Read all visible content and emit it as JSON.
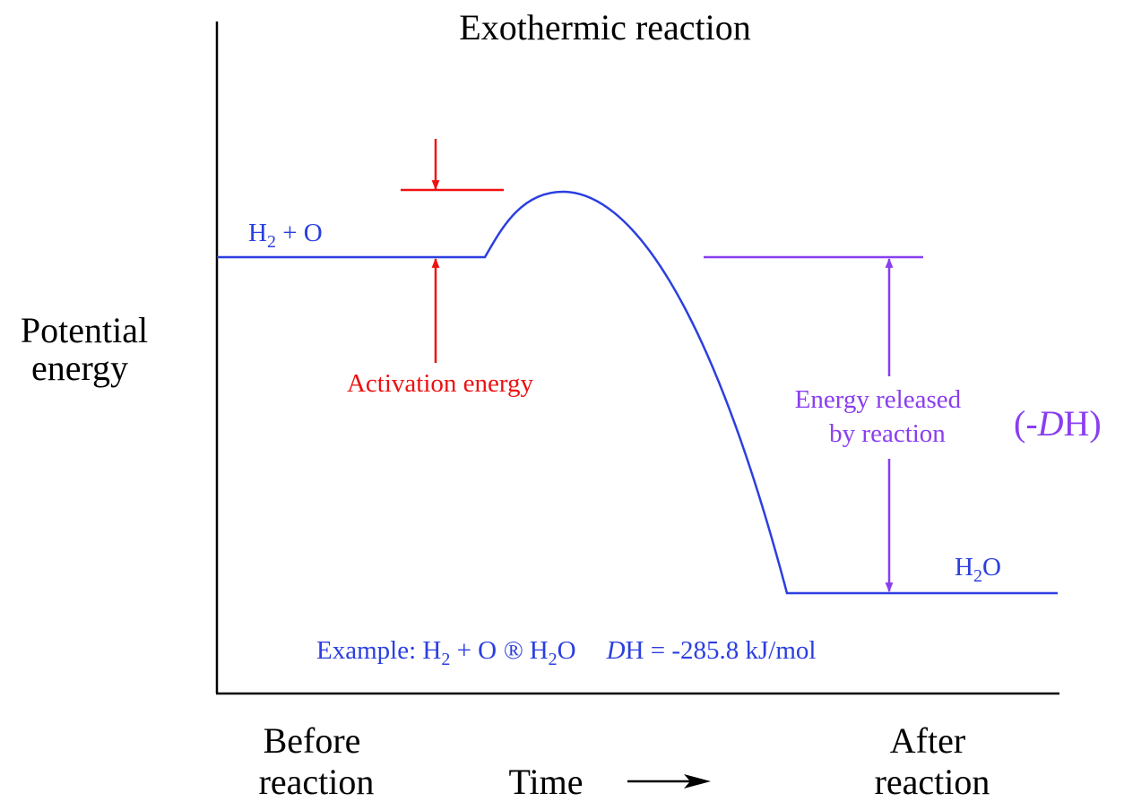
{
  "title": "Exothermic reaction",
  "y_axis_label": [
    "Potential",
    "energy"
  ],
  "reactants": {
    "base": "H",
    "sub": "2",
    "rest": " + O"
  },
  "product": {
    "base": "H",
    "sub": "2",
    "rest": "O"
  },
  "activation_energy_label": "Activation energy",
  "energy_released_label": [
    "Energy released",
    "by reaction"
  ],
  "delta_h_symbol": {
    "open": "(-",
    "italic": "D",
    "close": "H)"
  },
  "example": {
    "prefix": "Example: H",
    "sub1": "2",
    "mid": " + O ",
    "arrow": "®",
    "h": " H",
    "sub2": "2",
    "o": "O",
    "d": "D",
    "tail": "H = -285.8 kJ/mol"
  },
  "x_labels": {
    "before": [
      "Before",
      "reaction"
    ],
    "time": "Time",
    "after": [
      "After",
      "reaction"
    ]
  },
  "colors": {
    "axis": "#000000",
    "curve": "#2b3fe0",
    "activation": "#ee1111",
    "released": "#8a3ef0"
  },
  "chart_data": {
    "type": "line",
    "title": "Exothermic reaction",
    "xlabel": "Time",
    "ylabel": "Potential energy",
    "levels": {
      "reactants": "H2 + O",
      "products": "H2O"
    },
    "delta_h": "-285.8 kJ/mol"
  }
}
